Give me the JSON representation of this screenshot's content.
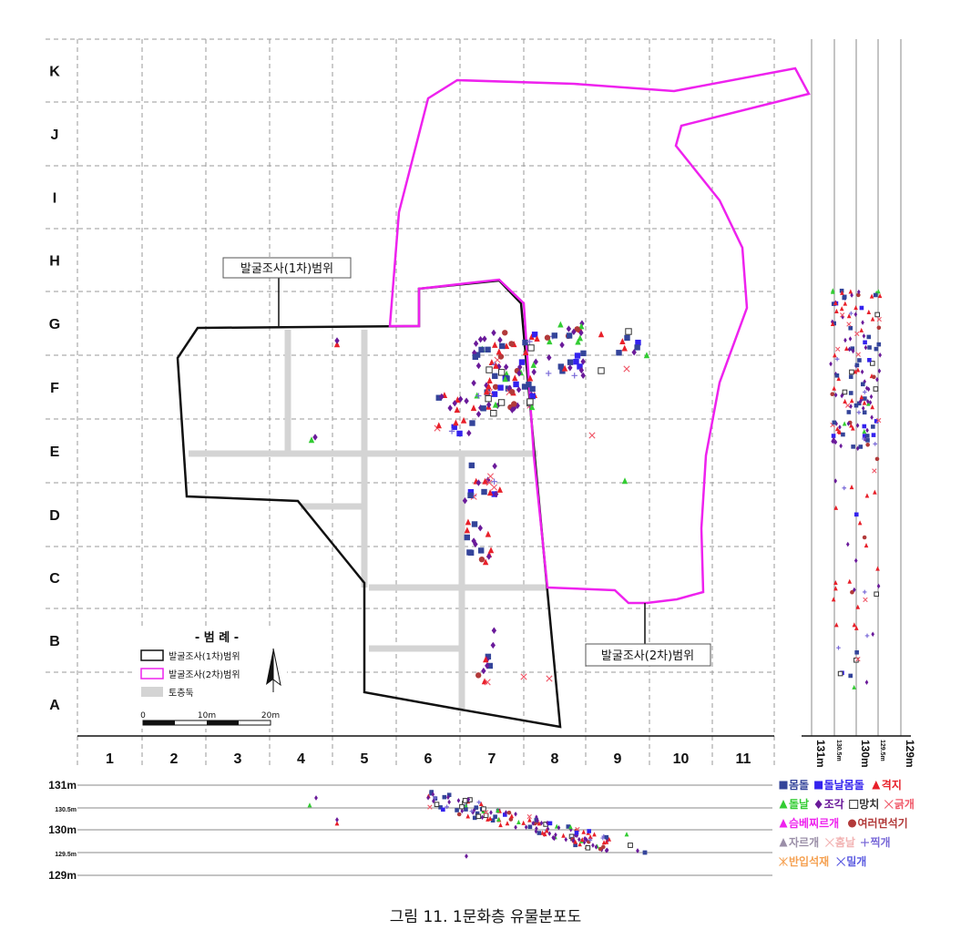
{
  "grid": {
    "row_labels": [
      "K",
      "J",
      "I",
      "H",
      "G",
      "F",
      "E",
      "D",
      "C",
      "B",
      "A"
    ],
    "col_labels": [
      "1",
      "2",
      "3",
      "4",
      "5",
      "6",
      "7",
      "8",
      "9",
      "10",
      "11"
    ]
  },
  "callouts": {
    "survey1": "발굴조사(1차)범위",
    "survey2": "발굴조사(2차)범위"
  },
  "legend": {
    "title": "- 범   례 -",
    "items": [
      "발굴조사(1차)범위",
      "발굴조사(2차)범위",
      "토층둑"
    ],
    "scale": [
      "0",
      "10m",
      "20m"
    ]
  },
  "elevation_labels": {
    "side": [
      "131m",
      "130.5m",
      "130m",
      "129.5m",
      "129m"
    ],
    "bottom": [
      "131m",
      "130.5m",
      "130m",
      "129.5m",
      "129m"
    ]
  },
  "artifact_legend": [
    {
      "name": "몸돌",
      "color": "#34449a",
      "symbol": "square"
    },
    {
      "name": "돌날몸돌",
      "color": "#3322ee",
      "symbol": "square"
    },
    {
      "name": "격지",
      "color": "#e8202a",
      "symbol": "triangle"
    },
    {
      "name": "돌날",
      "color": "#33cc33",
      "symbol": "triangle"
    },
    {
      "name": "조각",
      "color": "#6a1a9a",
      "symbol": "diamond"
    },
    {
      "name": "망치",
      "color": "#333333",
      "symbol": "open-square"
    },
    {
      "name": "긁개",
      "color": "#f05a6a",
      "symbol": "x"
    },
    {
      "name": "슴베찌르개",
      "color": "#ee22ee",
      "symbol": "triangle"
    },
    {
      "name": "여러면석기",
      "color": "#b23a3a",
      "symbol": "circle"
    },
    {
      "name": "자르개",
      "color": "#9b8fa8",
      "symbol": "triangle"
    },
    {
      "name": "홈날",
      "color": "#f2b3b3",
      "symbol": "x"
    },
    {
      "name": "찍개",
      "color": "#7a6ad8",
      "symbol": "plus"
    },
    {
      "name": "반입석재",
      "color": "#f5a050",
      "symbol": "asterisk"
    },
    {
      "name": "밀개",
      "color": "#5a5ae0",
      "symbol": "x"
    }
  ],
  "caption": "그림 11. 1문화층 유물분포도"
}
